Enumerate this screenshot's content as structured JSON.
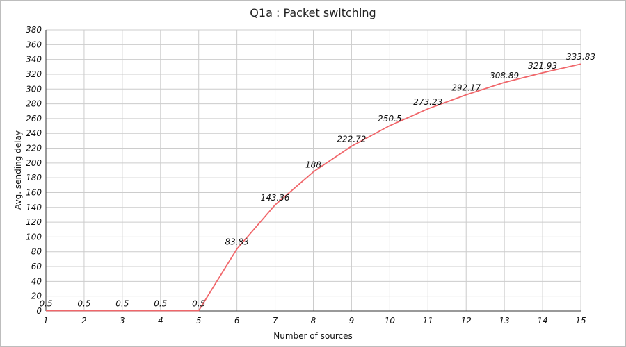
{
  "chart_data": {
    "type": "line",
    "title": "Q1a : Packet switching",
    "xlabel": "Number of sources",
    "ylabel": "Avg. sending delay",
    "x": [
      1,
      2,
      3,
      4,
      5,
      6,
      7,
      8,
      9,
      10,
      11,
      12,
      13,
      14,
      15
    ],
    "series": [
      {
        "values": [
          0.5,
          0.5,
          0.5,
          0.5,
          0.5,
          83.83,
          143.36,
          188,
          222.72,
          250.5,
          273.23,
          292.17,
          308.89,
          321.93,
          333.83
        ],
        "labels": [
          "0.5",
          "0.5",
          "0.5",
          "0.5",
          "0.5",
          "83.83",
          "143.36",
          "188",
          "222.72",
          "250.5",
          "273.23",
          "292.17",
          "308.89",
          "321.93",
          "333.83"
        ],
        "color": "#f0666a"
      }
    ],
    "xlim": [
      1,
      15
    ],
    "ylim": [
      0,
      380
    ],
    "xticks": [
      "1",
      "2",
      "3",
      "4",
      "5",
      "6",
      "7",
      "8",
      "9",
      "10",
      "11",
      "12",
      "13",
      "14",
      "15"
    ],
    "yticks": [
      "0",
      "20",
      "40",
      "60",
      "80",
      "100",
      "120",
      "140",
      "160",
      "180",
      "200",
      "220",
      "240",
      "260",
      "280",
      "300",
      "320",
      "340",
      "360",
      "380"
    ],
    "grid": true,
    "legend": "none"
  }
}
